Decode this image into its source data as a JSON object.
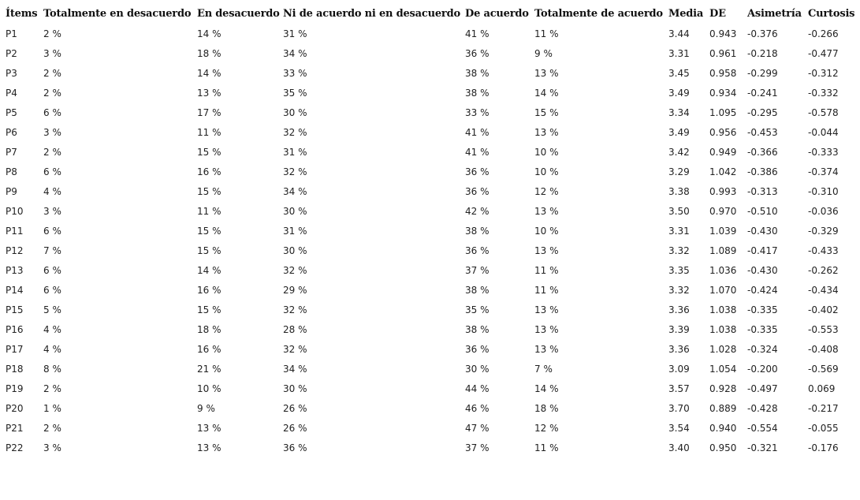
{
  "table": {
    "headers": [
      "Ítems",
      "Totalmente en desacuerdo",
      "En desacuerdo",
      "Ni de acuerdo ni en desacuerdo",
      "De acuerdo",
      "Totalmente de acuerdo",
      "Media",
      "DE",
      "Asimetría",
      "Curtosis"
    ],
    "rows": [
      [
        "P1",
        "2 %",
        "14 %",
        "31 %",
        "41 %",
        "11 %",
        "3.44",
        "0.943",
        "-0.376",
        "-0.266"
      ],
      [
        "P2",
        "3 %",
        "18 %",
        "34 %",
        "36 %",
        "9 %",
        "3.31",
        "0.961",
        "-0.218",
        "-0.477"
      ],
      [
        "P3",
        "2 %",
        "14 %",
        "33 %",
        "38 %",
        "13 %",
        "3.45",
        "0.958",
        "-0.299",
        "-0.312"
      ],
      [
        "P4",
        "2 %",
        "13 %",
        "35 %",
        "38 %",
        "14 %",
        "3.49",
        "0.934",
        "-0.241",
        "-0.332"
      ],
      [
        "P5",
        "6 %",
        "17 %",
        "30 %",
        "33 %",
        "15 %",
        "3.34",
        "1.095",
        "-0.295",
        "-0.578"
      ],
      [
        "P6",
        "3 %",
        "11 %",
        "32 %",
        "41 %",
        "13 %",
        "3.49",
        "0.956",
        "-0.453",
        "-0.044"
      ],
      [
        "P7",
        "2 %",
        "15 %",
        "31 %",
        "41 %",
        "10 %",
        "3.42",
        "0.949",
        "-0.366",
        "-0.333"
      ],
      [
        "P8",
        "6 %",
        "16 %",
        "32 %",
        "36 %",
        "10 %",
        "3.29",
        "1.042",
        "-0.386",
        "-0.374"
      ],
      [
        "P9",
        "4 %",
        "15 %",
        "34 %",
        "36 %",
        "12 %",
        "3.38",
        "0.993",
        "-0.313",
        "-0.310"
      ],
      [
        "P10",
        "3 %",
        "11 %",
        "30 %",
        "42 %",
        "13 %",
        "3.50",
        "0.970",
        "-0.510",
        "-0.036"
      ],
      [
        "P11",
        "6 %",
        "15 %",
        "31 %",
        "38 %",
        "10 %",
        "3.31",
        "1.039",
        "-0.430",
        "-0.329"
      ],
      [
        "P12",
        "7 %",
        "15 %",
        "30 %",
        "36 %",
        "13 %",
        "3.32",
        "1.089",
        "-0.417",
        "-0.433"
      ],
      [
        "P13",
        "6 %",
        "14 %",
        "32 %",
        "37 %",
        "11 %",
        "3.35",
        "1.036",
        "-0.430",
        "-0.262"
      ],
      [
        "P14",
        "6 %",
        "16 %",
        "29 %",
        "38 %",
        "11 %",
        "3.32",
        "1.070",
        "-0.424",
        "-0.434"
      ],
      [
        "P15",
        "5 %",
        "15 %",
        "32 %",
        "35 %",
        "13 %",
        "3.36",
        "1.038",
        "-0.335",
        "-0.402"
      ],
      [
        "P16",
        "4 %",
        "18 %",
        "28 %",
        "38 %",
        "13 %",
        "3.39",
        "1.038",
        "-0.335",
        "-0.553"
      ],
      [
        "P17",
        "4 %",
        "16 %",
        "32 %",
        "36 %",
        "13 %",
        "3.36",
        "1.028",
        "-0.324",
        "-0.408"
      ],
      [
        "P18",
        "8 %",
        "21 %",
        "34 %",
        "30 %",
        "7 %",
        "3.09",
        "1.054",
        "-0.200",
        "-0.569"
      ],
      [
        "P19",
        "2 %",
        "10 %",
        "30 %",
        "44 %",
        "14 %",
        "3.57",
        "0.928",
        "-0.497",
        "0.069"
      ],
      [
        "P20",
        "1 %",
        "9 %",
        "26 %",
        "46 %",
        "18 %",
        "3.70",
        "0.889",
        "-0.428",
        "-0.217"
      ],
      [
        "P21",
        "2 %",
        "13 %",
        "26 %",
        "47 %",
        "12 %",
        "3.54",
        "0.940",
        "-0.554",
        "-0.055"
      ],
      [
        "P22",
        "3 %",
        "13 %",
        "36 %",
        "37 %",
        "11 %",
        "3.40",
        "0.950",
        "-0.321",
        "-0.176"
      ]
    ]
  }
}
